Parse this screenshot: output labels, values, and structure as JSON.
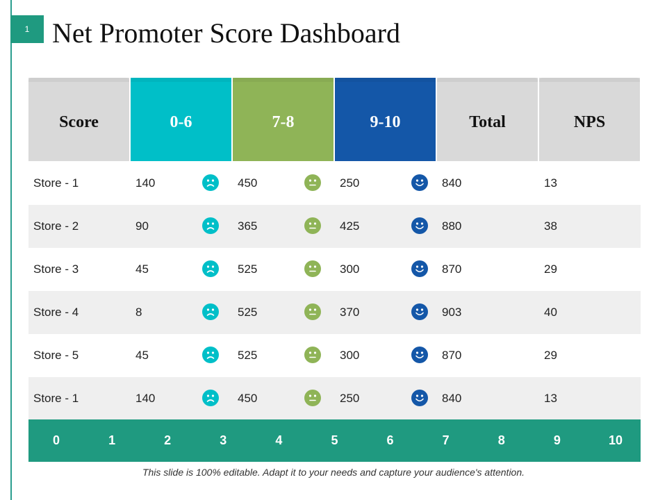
{
  "slide_number": "1",
  "title": "Net Promoter Score Dashboard",
  "headers": [
    {
      "label": "Score",
      "bg": "#d9d9d9",
      "fg": "#111111"
    },
    {
      "label": "0-6",
      "bg": "#00bfc8",
      "fg": "#ffffff"
    },
    {
      "label": "7-8",
      "bg": "#8fb457",
      "fg": "#ffffff"
    },
    {
      "label": "9-10",
      "bg": "#1457a8",
      "fg": "#ffffff"
    },
    {
      "label": "Total",
      "bg": "#d9d9d9",
      "fg": "#111111"
    },
    {
      "label": "NPS",
      "bg": "#d9d9d9",
      "fg": "#111111"
    }
  ],
  "face_colors": {
    "detractor": "#00bfc8",
    "passive": "#8fb457",
    "promoter": "#1457a8"
  },
  "rows": [
    {
      "store": "Store - 1",
      "detractors": "140",
      "passives": "450",
      "promoters": "250",
      "total": "840",
      "nps": "13"
    },
    {
      "store": "Store - 2",
      "detractors": "90",
      "passives": "365",
      "promoters": "425",
      "total": "880",
      "nps": "38"
    },
    {
      "store": "Store - 3",
      "detractors": "45",
      "passives": "525",
      "promoters": "300",
      "total": "870",
      "nps": "29"
    },
    {
      "store": "Store - 4",
      "detractors": "8",
      "passives": "525",
      "promoters": "370",
      "total": "903",
      "nps": "40"
    },
    {
      "store": "Store - 5",
      "detractors": "45",
      "passives": "525",
      "promoters": "300",
      "total": "870",
      "nps": "29"
    },
    {
      "store": "Store - 1",
      "detractors": "140",
      "passives": "450",
      "promoters": "250",
      "total": "840",
      "nps": "13"
    }
  ],
  "scale": [
    "0",
    "1",
    "2",
    "3",
    "4",
    "5",
    "6",
    "7",
    "8",
    "9",
    "10"
  ],
  "footer": "This slide is 100% editable. Adapt it to your needs and capture your audience's attention."
}
